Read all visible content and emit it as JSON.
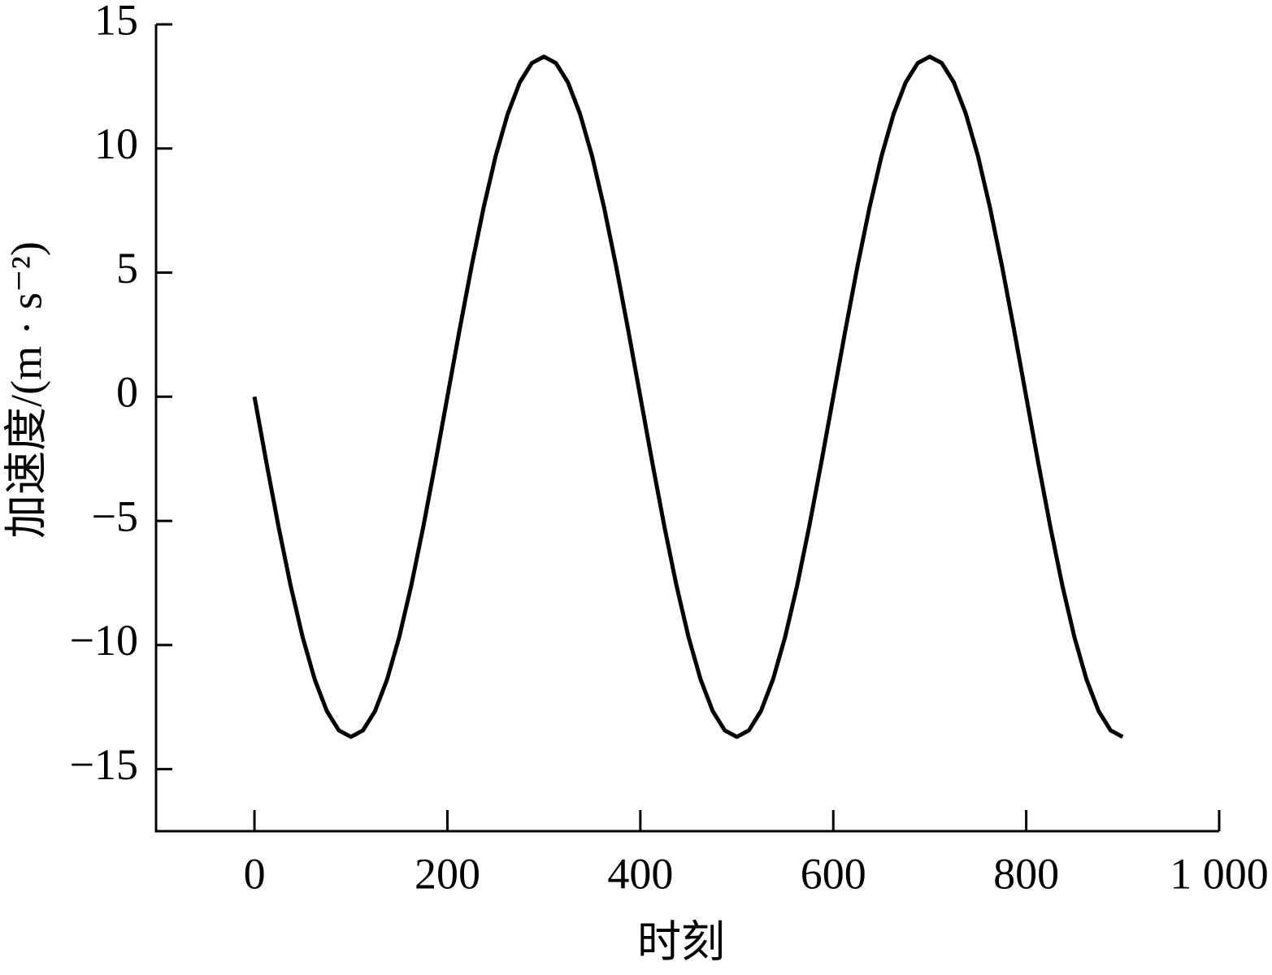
{
  "chart_data": {
    "type": "line",
    "x_label": "时刻",
    "y_label": "加速度/(m · s⁻²)",
    "xlim": [
      -102,
      1000
    ],
    "ylim": [
      -17.5,
      15
    ],
    "xticks": [
      0,
      200,
      400,
      600,
      800,
      {
        "value": 1000,
        "label": "1 000"
      }
    ],
    "yticks": [
      -15,
      -10,
      -5,
      0,
      5,
      10,
      15
    ],
    "x": [
      0,
      12.5,
      25,
      37.5,
      50,
      62.5,
      75,
      87.5,
      100,
      112.5,
      125,
      137.5,
      150,
      162.5,
      175,
      187.5,
      200,
      212.5,
      225,
      237.5,
      250,
      262.5,
      275,
      287.5,
      300,
      312.5,
      325,
      337.5,
      350,
      362.5,
      375,
      387.5,
      400,
      412.5,
      425,
      437.5,
      450,
      462.5,
      475,
      487.5,
      500,
      512.5,
      525,
      537.5,
      550,
      562.5,
      575,
      587.5,
      600,
      612.5,
      625,
      637.5,
      650,
      662.5,
      675,
      687.5,
      700,
      712.5,
      725,
      737.5,
      750,
      762.5,
      775,
      787.5,
      800,
      812.5,
      825,
      837.5,
      850,
      862.5,
      875,
      887.5,
      900
    ],
    "series": [
      {
        "color": "#000000",
        "values": [
          0,
          -2.67,
          -5.24,
          -7.61,
          -9.69,
          -11.39,
          -12.66,
          -13.44,
          -13.7,
          -13.44,
          -12.66,
          -11.39,
          -9.69,
          -7.61,
          -5.24,
          -2.67,
          0,
          2.67,
          5.24,
          7.61,
          9.69,
          11.39,
          12.66,
          13.44,
          13.7,
          13.44,
          12.66,
          11.39,
          9.69,
          7.61,
          5.24,
          2.67,
          0,
          -2.67,
          -5.24,
          -7.61,
          -9.69,
          -11.39,
          -12.66,
          -13.44,
          -13.7,
          -13.44,
          -12.66,
          -11.39,
          -9.69,
          -7.61,
          -5.24,
          -2.67,
          0,
          2.67,
          5.24,
          7.61,
          9.69,
          11.39,
          12.66,
          13.44,
          13.7,
          13.44,
          12.66,
          11.39,
          9.69,
          7.61,
          5.24,
          2.67,
          0,
          -2.67,
          -5.24,
          -7.61,
          -9.69,
          -11.39,
          -12.66,
          -13.44,
          -13.7
        ]
      }
    ]
  }
}
